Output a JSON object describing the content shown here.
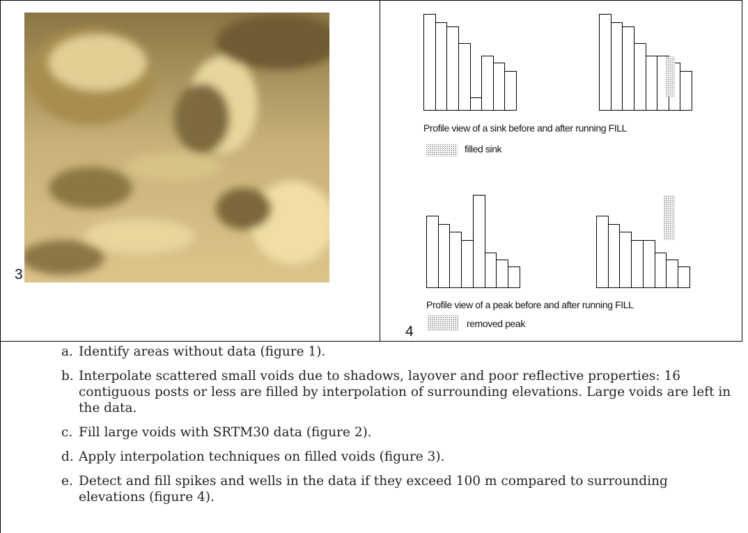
{
  "figure3": {
    "label": "3"
  },
  "figure4": {
    "label": "4",
    "sink": {
      "caption": "Profile view of a sink before and after running FILL",
      "legend": "filled sink"
    },
    "peak": {
      "caption": "Profile view of a peak before and after running FILL",
      "legend": "removed peak"
    }
  },
  "steps": [
    {
      "marker": "a.",
      "text": "Identify areas without data (figure 1)."
    },
    {
      "marker": "b.",
      "text": "Interpolate scattered small voids due to shadows, layover and poor reflective properties: 16 contiguous posts or less are filled by interpolation of surrounding elevations. Large voids are left in the data."
    },
    {
      "marker": "c.",
      "text": "Fill large voids with SRTM30 data (figure 2)."
    },
    {
      "marker": "d.",
      "text": "Apply interpolation techniques on filled voids (figure 3)."
    },
    {
      "marker": "e.",
      "text": "Detect and fill spikes and wells in the data if they exceed 100 m compared to surrounding elevations (figure 4)."
    }
  ]
}
